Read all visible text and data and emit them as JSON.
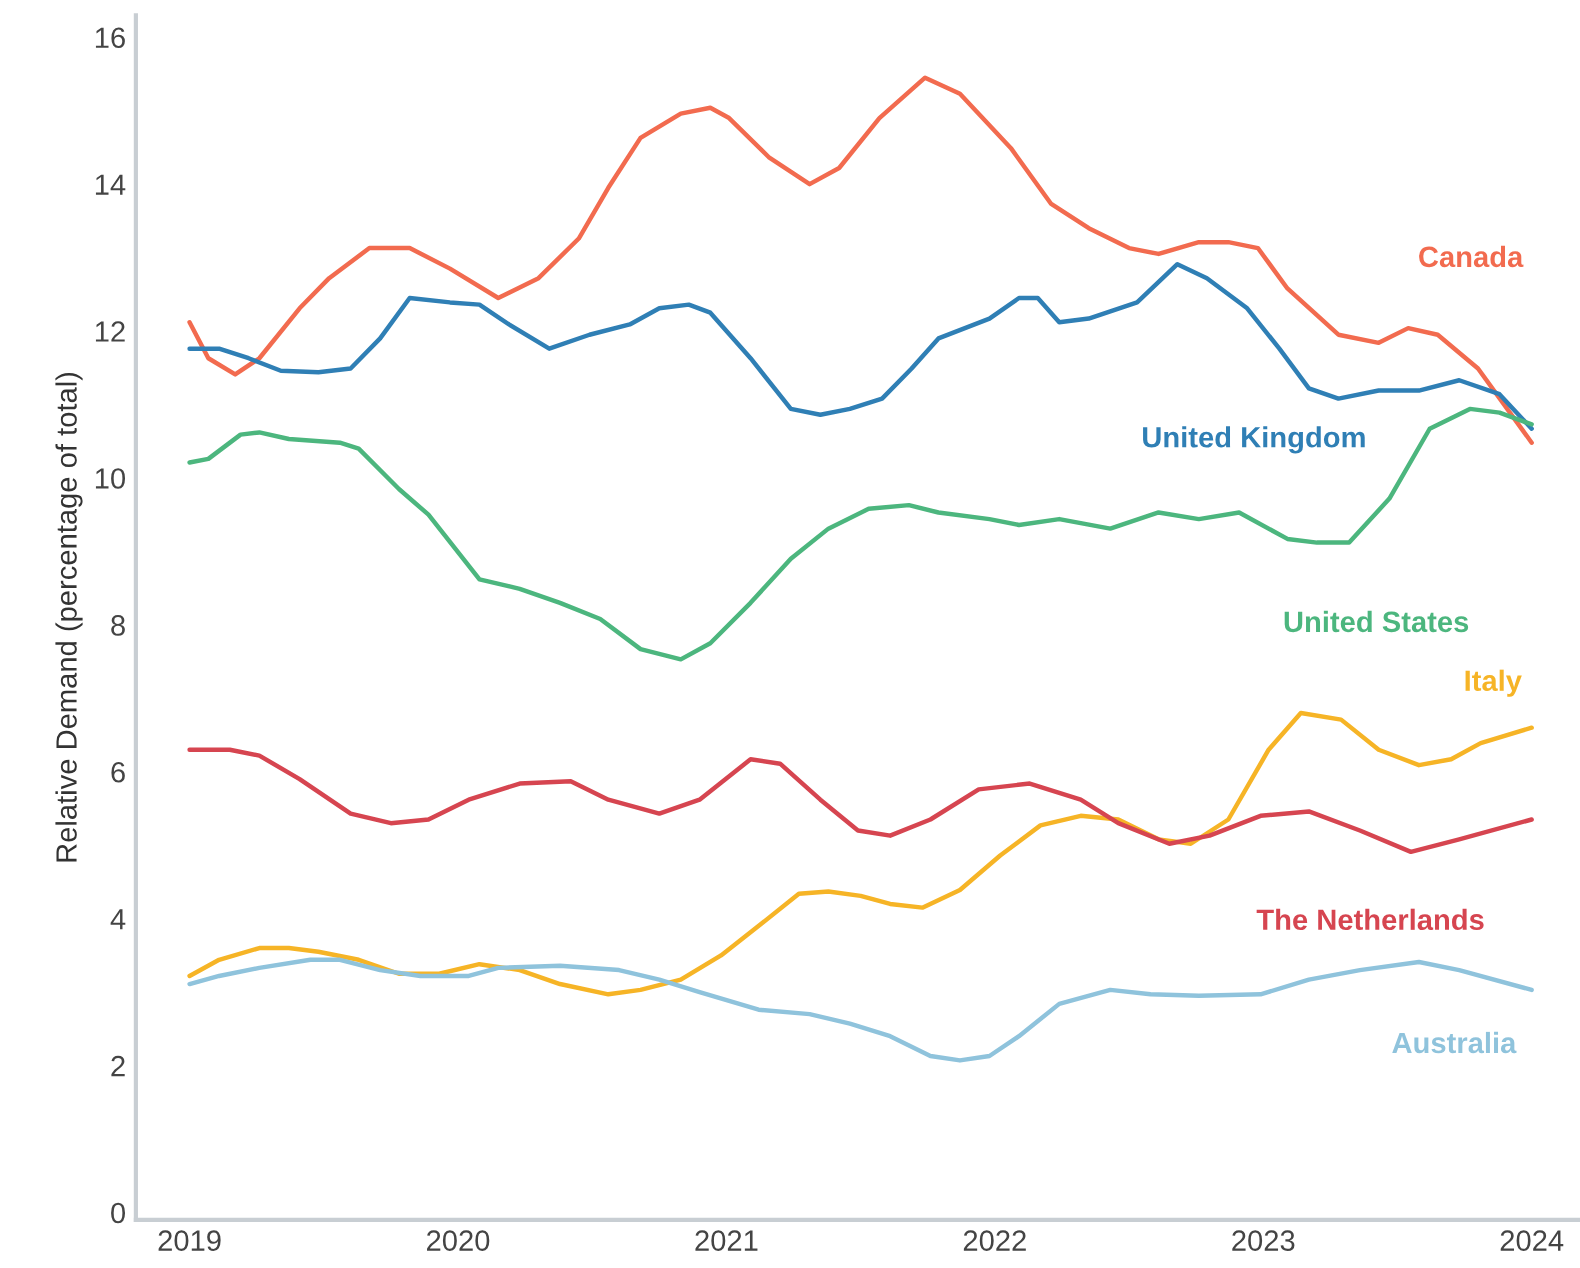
{
  "chart_data": {
    "type": "line",
    "ylabel": "Relative Demand (percentage of total)",
    "xlim": [
      2018.8,
      2024.18
    ],
    "ylim": [
      -0.1,
      16.3
    ],
    "xticks": [
      2019,
      2020,
      2021,
      2022,
      2023,
      2024
    ],
    "yticks": [
      0,
      2,
      4,
      6,
      8,
      10,
      12,
      14,
      16
    ],
    "grid": false,
    "legend": false,
    "marker": "none",
    "line_style": "solid",
    "series": [
      {
        "name": "Canada",
        "color": "#f26b4f",
        "x": [
          2019.0,
          2019.07,
          2019.17,
          2019.26,
          2019.41,
          2019.52,
          2019.67,
          2019.82,
          2019.97,
          2020.15,
          2020.3,
          2020.45,
          2020.56,
          2020.68,
          2020.83,
          2020.94,
          2021.01,
          2021.16,
          2021.31,
          2021.42,
          2021.57,
          2021.74,
          2021.87,
          2022.06,
          2022.21,
          2022.35,
          2022.5,
          2022.61,
          2022.76,
          2022.87,
          2022.98,
          2023.09,
          2023.28,
          2023.43,
          2023.54,
          2023.65,
          2023.8,
          2024.0
        ],
        "values": [
          12.12,
          11.63,
          11.41,
          11.63,
          12.31,
          12.72,
          13.13,
          13.13,
          12.85,
          12.45,
          12.72,
          13.26,
          13.95,
          14.63,
          14.96,
          15.04,
          14.9,
          14.36,
          14.0,
          14.22,
          14.9,
          15.45,
          15.23,
          14.49,
          13.73,
          13.4,
          13.13,
          13.05,
          13.21,
          13.21,
          13.13,
          12.58,
          11.95,
          11.84,
          12.04,
          11.95,
          11.49,
          10.48
        ]
      },
      {
        "name": "United Kingdom",
        "color": "#2f7fb5",
        "x": [
          2019.0,
          2019.11,
          2019.22,
          2019.34,
          2019.48,
          2019.6,
          2019.71,
          2019.82,
          2019.97,
          2020.08,
          2020.19,
          2020.34,
          2020.49,
          2020.64,
          2020.75,
          2020.86,
          2020.94,
          2021.09,
          2021.24,
          2021.35,
          2021.46,
          2021.58,
          2021.69,
          2021.79,
          2021.98,
          2022.09,
          2022.16,
          2022.24,
          2022.35,
          2022.53,
          2022.68,
          2022.79,
          2022.94,
          2023.06,
          2023.17,
          2023.28,
          2023.43,
          2023.58,
          2023.73,
          2023.88,
          2024.0
        ],
        "values": [
          11.76,
          11.76,
          11.63,
          11.46,
          11.44,
          11.49,
          11.9,
          12.45,
          12.39,
          12.36,
          12.09,
          11.76,
          11.95,
          12.09,
          12.31,
          12.36,
          12.25,
          11.63,
          10.94,
          10.86,
          10.94,
          11.08,
          11.49,
          11.9,
          12.17,
          12.45,
          12.45,
          12.12,
          12.17,
          12.39,
          12.91,
          12.72,
          12.31,
          11.76,
          11.22,
          11.08,
          11.19,
          11.19,
          11.33,
          11.14,
          10.67
        ]
      },
      {
        "name": "United States",
        "color": "#4cb67e",
        "x": [
          2019.0,
          2019.07,
          2019.19,
          2019.26,
          2019.37,
          2019.56,
          2019.63,
          2019.78,
          2019.89,
          2020.08,
          2020.23,
          2020.38,
          2020.53,
          2020.68,
          2020.83,
          2020.94,
          2021.09,
          2021.24,
          2021.38,
          2021.53,
          2021.68,
          2021.79,
          2021.98,
          2022.09,
          2022.24,
          2022.43,
          2022.61,
          2022.76,
          2022.91,
          2023.09,
          2023.2,
          2023.32,
          2023.47,
          2023.62,
          2023.77,
          2023.88,
          2024.0
        ],
        "values": [
          10.21,
          10.26,
          10.59,
          10.62,
          10.53,
          10.48,
          10.4,
          9.85,
          9.5,
          8.62,
          8.49,
          8.3,
          8.08,
          7.67,
          7.53,
          7.75,
          8.3,
          8.9,
          9.31,
          9.58,
          9.63,
          9.53,
          9.44,
          9.36,
          9.44,
          9.31,
          9.53,
          9.44,
          9.53,
          9.17,
          9.12,
          9.12,
          9.72,
          10.67,
          10.94,
          10.89,
          10.73
        ]
      },
      {
        "name": "Italy",
        "color": "#f6b426",
        "x": [
          2019.0,
          2019.11,
          2019.26,
          2019.37,
          2019.48,
          2019.63,
          2019.78,
          2019.93,
          2020.08,
          2020.23,
          2020.38,
          2020.56,
          2020.68,
          2020.83,
          2020.98,
          2021.13,
          2021.27,
          2021.38,
          2021.5,
          2021.61,
          2021.73,
          2021.87,
          2022.02,
          2022.17,
          2022.32,
          2022.46,
          2022.61,
          2022.73,
          2022.87,
          2023.02,
          2023.14,
          2023.29,
          2023.43,
          2023.58,
          2023.7,
          2023.81,
          2024.0
        ],
        "values": [
          3.22,
          3.44,
          3.6,
          3.6,
          3.55,
          3.44,
          3.25,
          3.25,
          3.38,
          3.3,
          3.11,
          2.97,
          3.03,
          3.17,
          3.5,
          3.93,
          4.34,
          4.37,
          4.31,
          4.2,
          4.15,
          4.39,
          4.86,
          5.27,
          5.4,
          5.35,
          5.08,
          5.02,
          5.35,
          6.3,
          6.8,
          6.71,
          6.3,
          6.09,
          6.17,
          6.39,
          6.6
        ]
      },
      {
        "name": "The Netherlands",
        "color": "#d64550",
        "x": [
          2019.0,
          2019.15,
          2019.26,
          2019.41,
          2019.6,
          2019.75,
          2019.89,
          2020.04,
          2020.23,
          2020.42,
          2020.56,
          2020.75,
          2020.9,
          2021.09,
          2021.2,
          2021.35,
          2021.49,
          2021.61,
          2021.76,
          2021.94,
          2022.13,
          2022.32,
          2022.46,
          2022.65,
          2022.8,
          2022.99,
          2023.17,
          2023.36,
          2023.55,
          2023.73,
          2024.0
        ],
        "values": [
          6.3,
          6.3,
          6.22,
          5.9,
          5.43,
          5.3,
          5.35,
          5.62,
          5.84,
          5.87,
          5.62,
          5.43,
          5.62,
          6.17,
          6.11,
          5.62,
          5.2,
          5.13,
          5.35,
          5.76,
          5.84,
          5.62,
          5.3,
          5.02,
          5.13,
          5.4,
          5.46,
          5.2,
          4.91,
          5.08,
          5.35
        ]
      },
      {
        "name": "Australia",
        "color": "#8fc3dc",
        "x": [
          2019.0,
          2019.11,
          2019.26,
          2019.45,
          2019.56,
          2019.71,
          2019.86,
          2020.04,
          2020.15,
          2020.38,
          2020.6,
          2020.75,
          2020.9,
          2021.12,
          2021.31,
          2021.46,
          2021.61,
          2021.76,
          2021.87,
          2021.98,
          2022.09,
          2022.24,
          2022.43,
          2022.58,
          2022.76,
          2022.99,
          2023.17,
          2023.36,
          2023.58,
          2023.73,
          2024.0
        ],
        "values": [
          3.11,
          3.22,
          3.33,
          3.44,
          3.44,
          3.3,
          3.22,
          3.22,
          3.33,
          3.36,
          3.3,
          3.17,
          3.0,
          2.76,
          2.7,
          2.57,
          2.4,
          2.13,
          2.07,
          2.13,
          2.4,
          2.84,
          3.03,
          2.97,
          2.95,
          2.97,
          3.17,
          3.3,
          3.41,
          3.3,
          3.03
        ]
      }
    ]
  }
}
